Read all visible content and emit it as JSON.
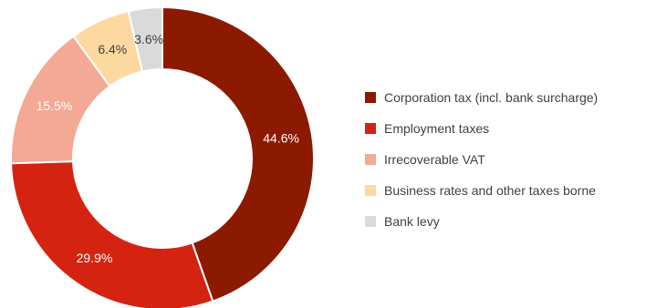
{
  "chart_data": {
    "type": "pie",
    "donut": true,
    "legend_position": "right",
    "slices": [
      {
        "label": "Corporation tax (incl. bank surcharge)",
        "value": 44.6,
        "display": "44.6%",
        "color": "#8b1a00"
      },
      {
        "label": "Employment taxes",
        "value": 29.9,
        "display": "29.9%",
        "color": "#d42411"
      },
      {
        "label": "Irrecoverable VAT",
        "value": 15.5,
        "display": "15.5%",
        "color": "#f3a996"
      },
      {
        "label": "Business rates and other taxes borne",
        "value": 6.4,
        "display": "6.4%",
        "color": "#fdd9a1"
      },
      {
        "label": "Bank levy",
        "value": 3.6,
        "display": "3.6%",
        "color": "#dadada"
      }
    ]
  }
}
